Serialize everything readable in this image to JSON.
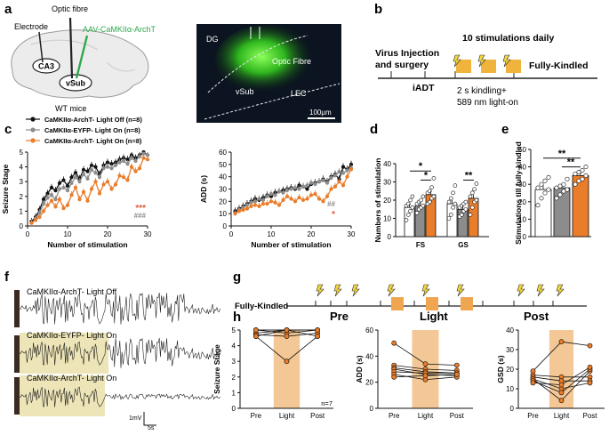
{
  "panel_labels": {
    "a": "a",
    "b": "b",
    "c": "c",
    "d": "d",
    "e": "e",
    "f": "f",
    "g": "g",
    "h": "h"
  },
  "panel_a": {
    "optic_fibre": "Optic fibre",
    "electrode": "Electrode",
    "virus": "AAV-CaMKIIα-ArchT",
    "ca3": "CA3",
    "vsub": "vSub",
    "mouse": "WT mice",
    "micro": {
      "dg": "DG",
      "fibre": "Optic Fibre",
      "vsub": "vSub",
      "lec": "LEC",
      "scale": "100μm"
    }
  },
  "panel_b": {
    "virus_line1": "Virus Injection",
    "virus_line2": "and surgery",
    "iadt": "iADT",
    "daily": "10 stimulations  daily",
    "kindled": "Fully-Kindled",
    "stim_line1": "2 s kindling+",
    "stim_line2": "589 nm light-on"
  },
  "colors": {
    "archt_off": "#111111",
    "eyfp_on": "#8c8c8c",
    "archt_on": "#ea7d2a",
    "light": "#f4c896",
    "trace_box": "#ede5b8"
  },
  "legend": [
    "CaMKIIα-ArchT- Light Off (n=8)",
    "CaMKIIα-EYFP- Light On (n=8)",
    "CaMKIIα-ArchT- Light On (n=8)"
  ],
  "chart_data": [
    {
      "id": "c-left",
      "type": "line",
      "ylabel": "Seizure Stage",
      "xlabel": "Number of stimulation",
      "xlim": [
        0,
        30
      ],
      "ylim": [
        0,
        5
      ],
      "xticks": [
        "0",
        "10",
        "20",
        "30"
      ],
      "yticks": [
        "0",
        "1",
        "2",
        "3",
        "4",
        "5"
      ],
      "series": [
        {
          "name": "CaMKIIα-ArchT- Light Off",
          "values": [
            0.3,
            0.6,
            1.1,
            1.8,
            2.2,
            2.6,
            2.4,
            2.9,
            3.1,
            2.7,
            3.3,
            3.6,
            3.2,
            3.8,
            3.7,
            4.1,
            4.0,
            3.5,
            4.1,
            4.3,
            4.2,
            4.3,
            4.5,
            4.6,
            4.5,
            4.8,
            4.6,
            4.8,
            5.0,
            4.8
          ]
        },
        {
          "name": "CaMKIIα-EYFP- Light On",
          "values": [
            0.2,
            0.5,
            0.9,
            1.5,
            1.9,
            2.1,
            1.8,
            2.5,
            2.6,
            2.4,
            2.9,
            3.3,
            3.0,
            3.5,
            3.2,
            3.8,
            3.6,
            3.3,
            3.9,
            4.0,
            3.9,
            4.1,
            4.3,
            4.4,
            4.2,
            4.6,
            4.4,
            4.7,
            4.9,
            4.8
          ]
        },
        {
          "name": "CaMKIIα-ArchT- Light On",
          "values": [
            0.2,
            0.4,
            0.6,
            1.0,
            1.4,
            1.7,
            1.3,
            1.8,
            1.2,
            1.4,
            2.1,
            2.6,
            1.8,
            2.3,
            1.7,
            2.5,
            3.0,
            2.2,
            2.8,
            3.0,
            2.5,
            2.8,
            3.4,
            3.3,
            3.1,
            4.0,
            3.7,
            3.9,
            4.6,
            4.5
          ]
        }
      ],
      "annotations": [
        "***",
        "###"
      ]
    },
    {
      "id": "c-right",
      "type": "line",
      "ylabel": "ADD (s)",
      "xlabel": "Number of stimulation",
      "xlim": [
        0,
        30
      ],
      "ylim": [
        0,
        60
      ],
      "xticks": [
        "0",
        "10",
        "20",
        "30"
      ],
      "yticks": [
        "0",
        "10",
        "20",
        "30",
        "40",
        "50",
        "60"
      ],
      "series": [
        {
          "name": "CaMKIIα-ArchT- Light Off",
          "values": [
            12,
            14,
            16,
            18,
            20,
            22,
            21,
            23,
            25,
            24,
            27,
            28,
            29,
            30,
            31,
            30,
            33,
            32,
            30,
            34,
            35,
            36,
            38,
            36,
            40,
            42,
            38,
            48,
            46,
            50
          ]
        },
        {
          "name": "CaMKIIα-EYFP- Light On",
          "values": [
            10,
            13,
            15,
            17,
            19,
            20,
            22,
            21,
            24,
            26,
            25,
            28,
            27,
            29,
            30,
            31,
            30,
            32,
            33,
            35,
            34,
            36,
            37,
            35,
            39,
            41,
            44,
            43,
            45,
            47
          ]
        },
        {
          "name": "CaMKIIα-ArchT- Light On",
          "values": [
            10,
            12,
            13,
            14,
            16,
            17,
            16,
            18,
            18,
            20,
            19,
            17,
            21,
            24,
            22,
            20,
            23,
            21,
            22,
            25,
            26,
            22,
            20,
            24,
            30,
            32,
            36,
            33,
            40,
            46
          ]
        }
      ],
      "annotations": [
        "##",
        "*"
      ]
    },
    {
      "id": "d",
      "type": "bar",
      "ylabel": "Numbers of stimulation",
      "categories": [
        "FS",
        "GS"
      ],
      "ylim": [
        0,
        40
      ],
      "yticks": [
        "0",
        "10",
        "20",
        "30",
        "40"
      ],
      "series": [
        {
          "name": "ArchT Light Off",
          "values": [
            16,
            18
          ]
        },
        {
          "name": "EYFP Light On",
          "values": [
            17,
            15
          ]
        },
        {
          "name": "ArchT Light On",
          "values": [
            23,
            21
          ]
        }
      ],
      "points": [
        [
          [
            9,
            12,
            14,
            16,
            17,
            18,
            20,
            22
          ],
          [
            10,
            12,
            16,
            18,
            19,
            21,
            24,
            28
          ]
        ],
        [
          [
            13,
            15,
            16,
            17,
            18,
            19,
            20,
            22
          ],
          [
            11,
            12,
            14,
            15,
            16,
            17,
            18,
            19
          ]
        ],
        [
          [
            18,
            19,
            21,
            22,
            24,
            25,
            27,
            32
          ],
          [
            12,
            16,
            19,
            20,
            22,
            24,
            26,
            29
          ]
        ]
      ],
      "annotations": [
        "*",
        "*",
        "**"
      ]
    },
    {
      "id": "e",
      "type": "bar",
      "ylabel": "Stimulations till fully-kindled",
      "categories": [
        "ArchT Off",
        "EYFP On",
        "ArchT On"
      ],
      "ylim": [
        0,
        50
      ],
      "yticks": [
        "0",
        "10",
        "20",
        "30",
        "40",
        "50"
      ],
      "values": [
        27,
        28,
        35
      ],
      "points": [
        [
          18,
          22,
          25,
          27,
          28,
          30,
          32,
          34
        ],
        [
          22,
          24,
          26,
          27,
          28,
          29,
          30,
          33
        ],
        [
          30,
          32,
          33,
          35,
          36,
          37,
          38,
          40
        ]
      ],
      "annotations": [
        "**",
        "**"
      ]
    },
    {
      "id": "h1",
      "type": "line",
      "ylabel": "Seizure Stage",
      "categories": [
        "Pre",
        "Light",
        "Post"
      ],
      "ylim": [
        0,
        5
      ],
      "yticks": [
        "0",
        "1",
        "2",
        "3",
        "4",
        "5"
      ],
      "paths": [
        [
          5,
          5,
          5
        ],
        [
          5,
          4.8,
          5
        ],
        [
          4.8,
          5,
          5
        ],
        [
          4.7,
          4.6,
          4.8
        ],
        [
          4.6,
          3,
          4.6
        ],
        [
          5,
          5,
          4.6
        ],
        [
          4.6,
          5,
          5
        ]
      ],
      "n_label": "n=7"
    },
    {
      "id": "h2",
      "type": "line",
      "ylabel": "ADD (s)",
      "categories": [
        "Pre",
        "Light",
        "Post"
      ],
      "ylim": [
        0,
        60
      ],
      "yticks": [
        "0",
        "20",
        "40",
        "60"
      ],
      "paths": [
        [
          50,
          34,
          33
        ],
        [
          33,
          30,
          29
        ],
        [
          31,
          28,
          27
        ],
        [
          30,
          26,
          25
        ],
        [
          28,
          27,
          27
        ],
        [
          26,
          22,
          24
        ],
        [
          24,
          25,
          26
        ]
      ]
    },
    {
      "id": "h3",
      "type": "line",
      "ylabel": "GSD (s)",
      "categories": [
        "Pre",
        "Light",
        "Post"
      ],
      "ylim": [
        0,
        40
      ],
      "yticks": [
        "0",
        "10",
        "20",
        "30",
        "40"
      ],
      "paths": [
        [
          19,
          34,
          32
        ],
        [
          17,
          16,
          16
        ],
        [
          16,
          14,
          14
        ],
        [
          15,
          10,
          13
        ],
        [
          15,
          4,
          19
        ],
        [
          14,
          8,
          20
        ],
        [
          13,
          12,
          21
        ]
      ]
    }
  ],
  "panel_f": {
    "traces": [
      "CaMKIIα-ArchT- Light Off",
      "CaMKIIα-EYFP- Light On",
      "CaMKIIα-ArchT- Light On"
    ],
    "scale_v": "1mV",
    "scale_t": "5s"
  },
  "panel_g": {
    "kindled": "Fully-Kindled",
    "pre": "Pre",
    "light": "Light",
    "post": "Post"
  }
}
